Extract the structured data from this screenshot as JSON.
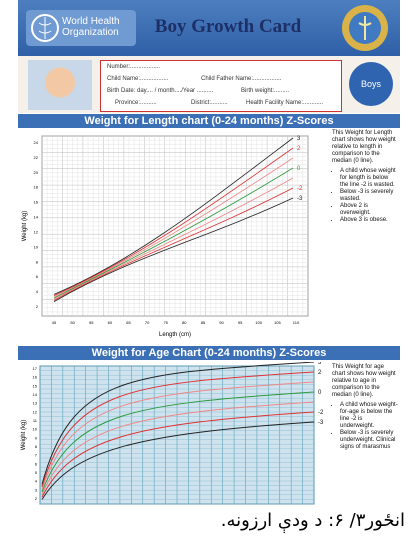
{
  "header": {
    "org": "World Health Organization",
    "title": "Boy Growth Card",
    "badge": "Boys"
  },
  "form": {
    "number": "Number:..................",
    "child_name": "Child Name:.................",
    "father_name": "Child Father Name:.................",
    "birth_date": "Birth Date: day.... / month..../Year ..........",
    "birth_weight": "Birth weight:.........",
    "province": "Province:..........",
    "district": "District:..........",
    "facility": "Health Facility Name:............"
  },
  "chart1": {
    "heading": "Weight for Length chart (0-24 months) Z-Scores",
    "y_label": "Weight (kg)",
    "x_label": "Length (cm)",
    "xticks": [
      "45",
      "50",
      "55",
      "60",
      "65",
      "70",
      "75",
      "80",
      "85",
      "90",
      "95",
      "100",
      "105",
      "110"
    ],
    "yticks": [
      "2",
      "4",
      "6",
      "8",
      "10",
      "12",
      "14",
      "16",
      "18",
      "20",
      "22",
      "24"
    ],
    "curve_labels": [
      "3",
      "2",
      "0",
      "-2",
      "-3"
    ],
    "side_text": "This Weight for Length chart shows how weight relative to length in comparison to the median (0 line).",
    "bullets": [
      "A child whose weight for length is below the line -2 is wasted.",
      "Below -3 is severely wasted.",
      "Above 2 is overweight.",
      "Above 3 is obese."
    ]
  },
  "chart2": {
    "heading": "Weight for Age Chart (0-24 months)  Z-Scores",
    "y_label": "Weight (kg)",
    "yticks": [
      "2",
      "3",
      "4",
      "5",
      "6",
      "7",
      "8",
      "9",
      "10",
      "11",
      "12",
      "13",
      "14",
      "15",
      "16",
      "17"
    ],
    "curve_labels": [
      "3",
      "2",
      "0",
      "-2",
      "-3"
    ],
    "side_text": "This Weight for age chart shows how weight relative to age in comparison to the median (0 line).",
    "bullets": [
      "A child whose weight-for-age is below the line -2 is underweight.",
      "Below -3 is severely underweight. Clinical signs of marasmus"
    ]
  },
  "caption": "انځور۳/ ۶: د ودې ارزونه."
}
